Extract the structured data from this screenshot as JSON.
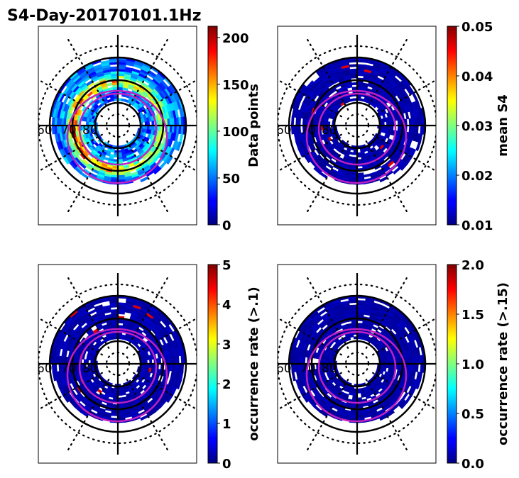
{
  "title": "S4-Day-20170101.1Hz",
  "chart_data": [
    {
      "type": "heatmap",
      "projection": "polar",
      "colorbar_label": "Data points",
      "clim": [
        0,
        212
      ],
      "ticks": [
        "0",
        "50",
        "100",
        "150",
        "200"
      ],
      "tick_values": [
        0,
        50,
        100,
        150,
        200
      ],
      "lat_labels": [
        "60",
        "70",
        "80"
      ],
      "intensity": "high"
    },
    {
      "type": "heatmap",
      "projection": "polar",
      "colorbar_label": "mean S4",
      "clim": [
        0.01,
        0.05
      ],
      "ticks": [
        "0.01",
        "0.02",
        "0.03",
        "0.04",
        "0.05"
      ],
      "tick_values": [
        0.01,
        0.02,
        0.03,
        0.04,
        0.05
      ],
      "lat_labels": [
        "60",
        "70",
        "80"
      ],
      "intensity": "low"
    },
    {
      "type": "heatmap",
      "projection": "polar",
      "colorbar_label": "occurrence rate (>.1)",
      "clim": [
        0,
        5
      ],
      "ticks": [
        "0",
        "1",
        "2",
        "3",
        "4",
        "5"
      ],
      "tick_values": [
        0,
        1,
        2,
        3,
        4,
        5
      ],
      "lat_labels": [
        "60",
        "70",
        "80"
      ],
      "intensity": "low"
    },
    {
      "type": "heatmap",
      "projection": "polar",
      "colorbar_label": "occurrence rate (>.15)",
      "clim": [
        0,
        2
      ],
      "ticks": [
        "0.0",
        "0.5",
        "1.0",
        "1.5",
        "2.0"
      ],
      "tick_values": [
        0,
        0.5,
        1,
        1.5,
        2
      ],
      "lat_labels": [
        "60",
        "70",
        "80"
      ],
      "intensity": "none"
    }
  ]
}
